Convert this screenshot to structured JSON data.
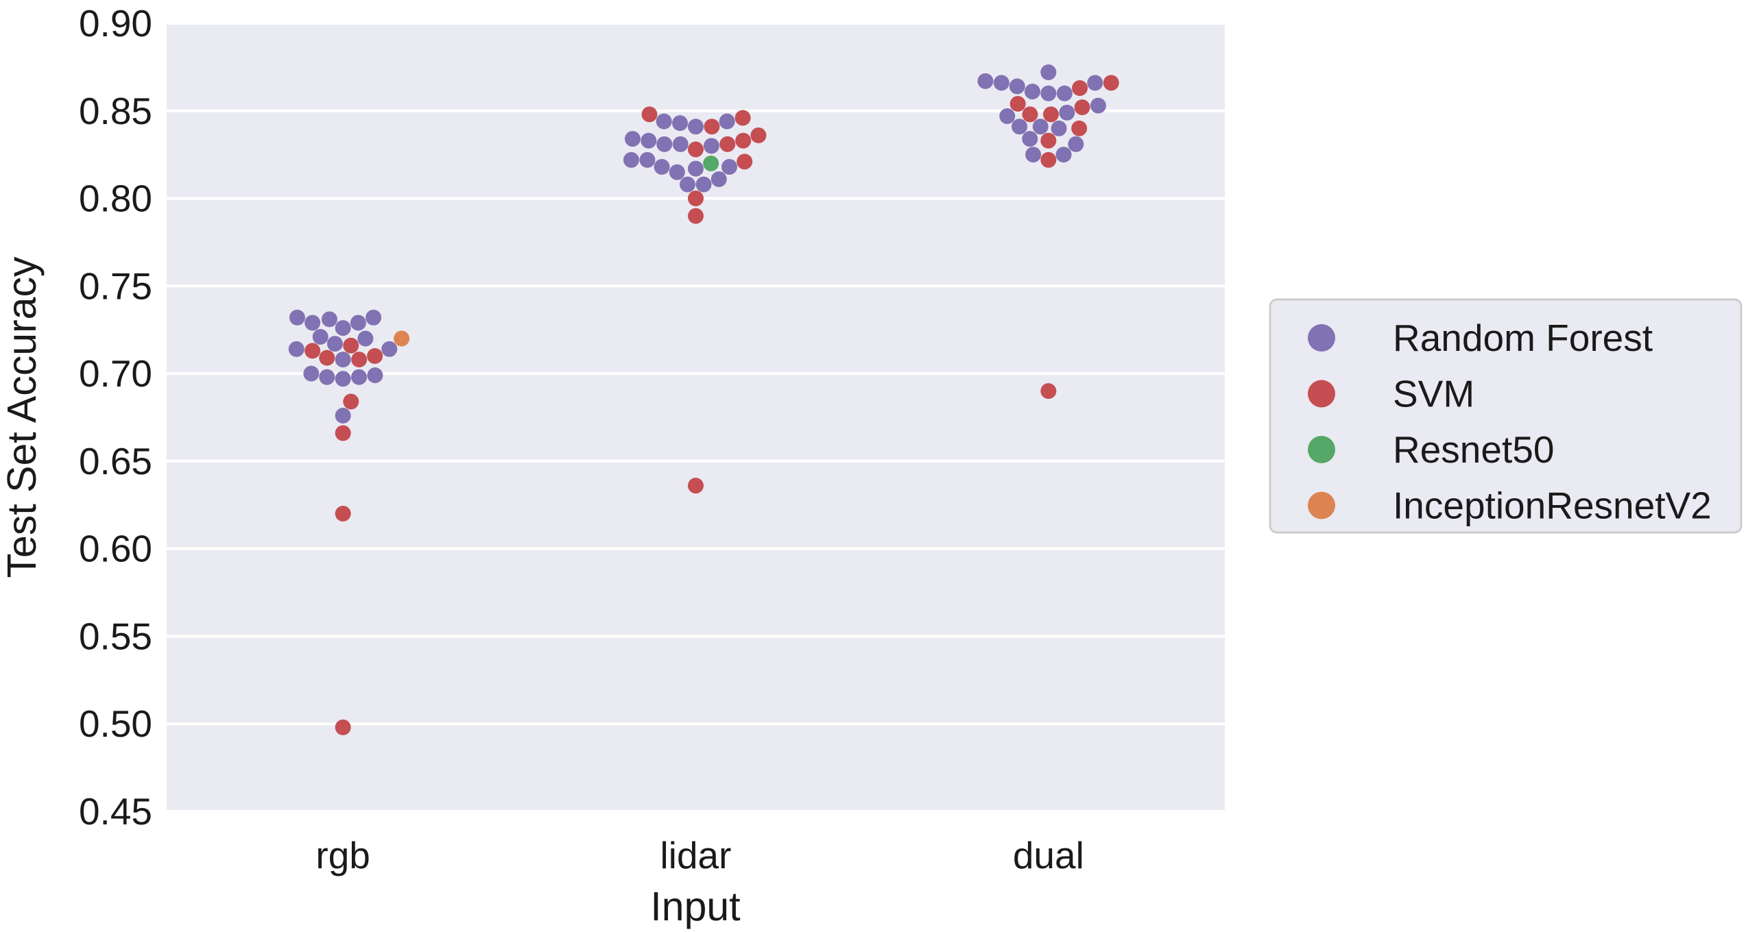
{
  "chart_data": {
    "type": "scatter",
    "subtype": "swarm",
    "xlabel": "Input",
    "ylabel": "Test Set Accuracy",
    "categories": [
      "rgb",
      "lidar",
      "dual"
    ],
    "ylim": [
      0.45,
      0.9
    ],
    "yticks": [
      "0.45",
      "0.50",
      "0.55",
      "0.60",
      "0.65",
      "0.70",
      "0.75",
      "0.80",
      "0.85",
      "0.90"
    ],
    "grid": true,
    "background": "#eaeaf2",
    "legend_position": "right",
    "series": [
      {
        "name": "Random Forest",
        "color": "#8172b3",
        "points": [
          {
            "x": "rgb",
            "y": 0.721
          },
          {
            "x": "rgb",
            "y": 0.72
          },
          {
            "x": "rgb",
            "y": 0.732
          },
          {
            "x": "rgb",
            "y": 0.731
          },
          {
            "x": "rgb",
            "y": 0.729
          },
          {
            "x": "rgb",
            "y": 0.729
          },
          {
            "x": "rgb",
            "y": 0.726
          },
          {
            "x": "rgb",
            "y": 0.732
          },
          {
            "x": "rgb",
            "y": 0.714
          },
          {
            "x": "rgb",
            "y": 0.714
          },
          {
            "x": "rgb",
            "y": 0.708
          },
          {
            "x": "rgb",
            "y": 0.717
          },
          {
            "x": "rgb",
            "y": 0.7
          },
          {
            "x": "rgb",
            "y": 0.698
          },
          {
            "x": "rgb",
            "y": 0.697
          },
          {
            "x": "rgb",
            "y": 0.698
          },
          {
            "x": "rgb",
            "y": 0.699
          },
          {
            "x": "rgb",
            "y": 0.676
          },
          {
            "x": "lidar",
            "y": 0.834
          },
          {
            "x": "lidar",
            "y": 0.831
          },
          {
            "x": "lidar",
            "y": 0.822
          },
          {
            "x": "lidar",
            "y": 0.818
          },
          {
            "x": "lidar",
            "y": 0.817
          },
          {
            "x": "lidar",
            "y": 0.811
          },
          {
            "x": "lidar",
            "y": 0.843
          },
          {
            "x": "lidar",
            "y": 0.831
          },
          {
            "x": "lidar",
            "y": 0.841
          },
          {
            "x": "lidar",
            "y": 0.808
          },
          {
            "x": "lidar",
            "y": 0.808
          },
          {
            "x": "lidar",
            "y": 0.83
          },
          {
            "x": "lidar",
            "y": 0.833
          },
          {
            "x": "lidar",
            "y": 0.815
          },
          {
            "x": "lidar",
            "y": 0.818
          },
          {
            "x": "lidar",
            "y": 0.844
          },
          {
            "x": "lidar",
            "y": 0.844
          },
          {
            "x": "lidar",
            "y": 0.822
          },
          {
            "x": "dual",
            "y": 0.861
          },
          {
            "x": "dual",
            "y": 0.86
          },
          {
            "x": "dual",
            "y": 0.841
          },
          {
            "x": "dual",
            "y": 0.849
          },
          {
            "x": "dual",
            "y": 0.831
          },
          {
            "x": "dual",
            "y": 0.864
          },
          {
            "x": "dual",
            "y": 0.825
          },
          {
            "x": "dual",
            "y": 0.86
          },
          {
            "x": "dual",
            "y": 0.84
          },
          {
            "x": "dual",
            "y": 0.847
          },
          {
            "x": "dual",
            "y": 0.866
          },
          {
            "x": "dual",
            "y": 0.825
          },
          {
            "x": "dual",
            "y": 0.872
          },
          {
            "x": "dual",
            "y": 0.853
          },
          {
            "x": "dual",
            "y": 0.834
          },
          {
            "x": "dual",
            "y": 0.866
          },
          {
            "x": "dual",
            "y": 0.841
          },
          {
            "x": "dual",
            "y": 0.867
          }
        ]
      },
      {
        "name": "SVM",
        "color": "#c44e52",
        "points": [
          {
            "x": "rgb",
            "y": 0.71
          },
          {
            "x": "rgb",
            "y": 0.708
          },
          {
            "x": "rgb",
            "y": 0.716
          },
          {
            "x": "rgb",
            "y": 0.713
          },
          {
            "x": "rgb",
            "y": 0.684
          },
          {
            "x": "rgb",
            "y": 0.666
          },
          {
            "x": "rgb",
            "y": 0.62
          },
          {
            "x": "rgb",
            "y": 0.498
          },
          {
            "x": "rgb",
            "y": 0.709
          },
          {
            "x": "lidar",
            "y": 0.841
          },
          {
            "x": "lidar",
            "y": 0.833
          },
          {
            "x": "lidar",
            "y": 0.8
          },
          {
            "x": "lidar",
            "y": 0.79
          },
          {
            "x": "lidar",
            "y": 0.828
          },
          {
            "x": "lidar",
            "y": 0.846
          },
          {
            "x": "lidar",
            "y": 0.848
          },
          {
            "x": "lidar",
            "y": 0.836
          },
          {
            "x": "lidar",
            "y": 0.821
          },
          {
            "x": "lidar",
            "y": 0.831
          },
          {
            "x": "lidar",
            "y": 0.636
          },
          {
            "x": "dual",
            "y": 0.863
          },
          {
            "x": "dual",
            "y": 0.848
          },
          {
            "x": "dual",
            "y": 0.84
          },
          {
            "x": "dual",
            "y": 0.848
          },
          {
            "x": "dual",
            "y": 0.822
          },
          {
            "x": "dual",
            "y": 0.852
          },
          {
            "x": "dual",
            "y": 0.833
          },
          {
            "x": "dual",
            "y": 0.854
          },
          {
            "x": "dual",
            "y": 0.866
          },
          {
            "x": "dual",
            "y": 0.69
          }
        ]
      },
      {
        "name": "Resnet50",
        "color": "#55a868",
        "points": [
          {
            "x": "lidar",
            "y": 0.82
          }
        ]
      },
      {
        "name": "InceptionResnetV2",
        "color": "#dd8452",
        "points": [
          {
            "x": "rgb",
            "y": 0.72
          }
        ]
      }
    ]
  }
}
